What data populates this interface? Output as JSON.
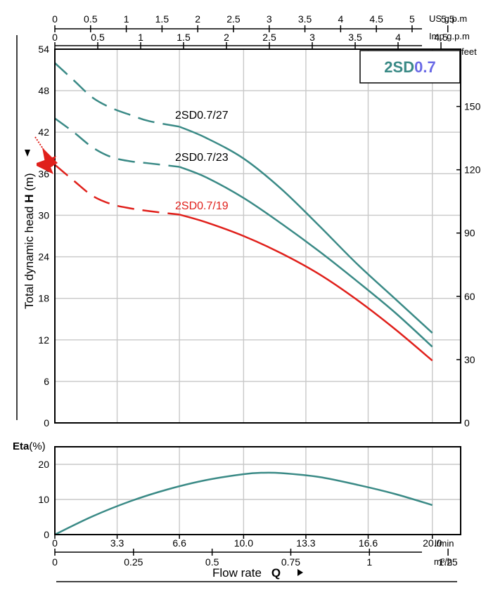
{
  "chart_data": [
    {
      "type": "line",
      "title": "2SD0.7",
      "title_parts": [
        "2SD",
        "0.7"
      ],
      "ylabel_prefix": "Total dynamic head",
      "ylabel_bold": "H",
      "ylabel_unit": "(m)",
      "ylim": [
        0,
        54
      ],
      "yticks": [
        "0",
        "6",
        "12",
        "18",
        "24",
        "30",
        "36",
        "42",
        "48",
        "54"
      ],
      "xlim": [
        0,
        21.5
      ],
      "x_grid": [
        3.3,
        6.6,
        10,
        13.3,
        16.6,
        20
      ],
      "right_axis_unit": "feet",
      "right_ticks": [
        "0",
        "30",
        "60",
        "90",
        "120",
        "150"
      ],
      "top_axes": [
        {
          "unit": "US g.p.m",
          "ticks": [
            "0",
            "0.5",
            "1",
            "1.5",
            "2",
            "2.5",
            "3",
            "3.5",
            "4",
            "4.5",
            "5",
            "5.5"
          ]
        },
        {
          "unit": "Imp g.p.m",
          "ticks": [
            "0",
            "0.5",
            "1",
            "1.5",
            "2",
            "2.5",
            "3",
            "3.5",
            "4",
            "4.5"
          ]
        }
      ],
      "series": [
        {
          "name": "2SD0.7/27",
          "color": "#3a8a86",
          "dashed_x": [
            0,
            1,
            2,
            3,
            4,
            5,
            6.6
          ],
          "dashed_y": [
            52.0,
            49.5,
            47.0,
            45.5,
            44.5,
            43.6,
            42.8
          ],
          "x": [
            6.6,
            8,
            10,
            12,
            14,
            16,
            18,
            20
          ],
          "y": [
            42.8,
            41.2,
            38.2,
            33.8,
            28.5,
            23.0,
            18.0,
            13.0
          ]
        },
        {
          "name": "2SD0.7/23",
          "color": "#3a8a86",
          "dashed_x": [
            0,
            1,
            2,
            3,
            4,
            5,
            6.6
          ],
          "dashed_y": [
            44.0,
            42.0,
            39.8,
            38.4,
            37.8,
            37.5,
            37.0
          ],
          "x": [
            6.6,
            8,
            10,
            12,
            14,
            16,
            18,
            20
          ],
          "y": [
            37.0,
            35.5,
            32.5,
            28.8,
            24.8,
            20.5,
            16.0,
            11.0
          ]
        },
        {
          "name": "2SD0.7/19",
          "color": "#e0201b",
          "dashed_x": [
            0,
            1,
            2,
            3,
            4,
            5,
            6.6
          ],
          "dashed_y": [
            37.3,
            35.0,
            32.8,
            31.6,
            31.0,
            30.6,
            30.1
          ],
          "x": [
            6.6,
            8,
            10,
            12,
            14,
            16,
            18,
            20
          ],
          "y": [
            30.1,
            29.0,
            27.0,
            24.5,
            21.5,
            17.8,
            13.6,
            9.0
          ]
        }
      ]
    },
    {
      "type": "line",
      "ylabel_bold": "Eta",
      "ylabel_unit": "(%)",
      "ylim": [
        0,
        25
      ],
      "yticks": [
        "0",
        "10",
        "20"
      ],
      "xlim": [
        0,
        21.5
      ],
      "series": [
        {
          "color": "#3a8a86",
          "x": [
            0,
            2,
            4,
            6,
            8,
            10,
            11,
            12,
            14,
            16,
            18,
            20
          ],
          "y": [
            0,
            5.2,
            9.5,
            12.9,
            15.5,
            17.2,
            17.6,
            17.5,
            16.4,
            14.2,
            11.6,
            8.4
          ]
        }
      ]
    }
  ],
  "x_axes": {
    "lmin": {
      "unit": "l/min",
      "ticks": [
        {
          "v": 0,
          "label": "0"
        },
        {
          "v": 3.3,
          "label": "3.3"
        },
        {
          "v": 6.6,
          "label": "6.6"
        },
        {
          "v": 10,
          "label": "10.0"
        },
        {
          "v": 13.3,
          "label": "13.3"
        },
        {
          "v": 16.6,
          "label": "16.6"
        },
        {
          "v": 20,
          "label": "20.0"
        }
      ]
    },
    "m3h": {
      "unit": "m³/h",
      "ticks": [
        "0",
        "0.25",
        "0.5",
        "0.75",
        "1",
        "1.25"
      ]
    },
    "label": "Flow  rate",
    "label_bold": "Q"
  }
}
